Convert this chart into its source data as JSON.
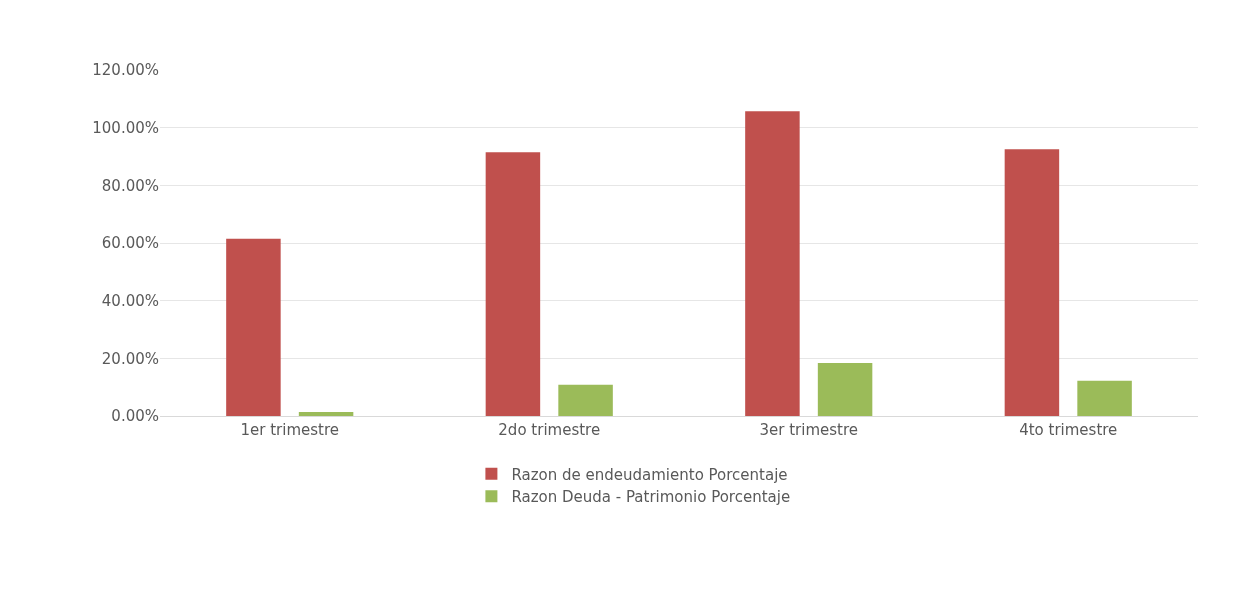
{
  "chart_data": {
    "type": "bar",
    "categories": [
      "1er trimestre",
      "2do trimestre",
      "3er trimestre",
      "4to trimestre"
    ],
    "series": [
      {
        "name": "Razon de endeudamiento Porcentaje",
        "color": "#c0504d",
        "values": [
          61.5,
          91.5,
          105.7,
          92.5
        ]
      },
      {
        "name": "Razon Deuda - Patrimonio Porcentaje",
        "color": "#9bbb59",
        "values": [
          1.4,
          10.8,
          18.4,
          12.2
        ]
      }
    ],
    "ylim": [
      0,
      120
    ],
    "yticks": [
      {
        "value": 0,
        "label": "0.00%"
      },
      {
        "value": 20,
        "label": "20.00%"
      },
      {
        "value": 40,
        "label": "40.00%"
      },
      {
        "value": 60,
        "label": "60.00%"
      },
      {
        "value": 80,
        "label": "80.00%"
      },
      {
        "value": 100,
        "label": "100.00%"
      },
      {
        "value": 120,
        "label": "120.00%"
      }
    ],
    "grid": "y",
    "legend": "bottom"
  }
}
